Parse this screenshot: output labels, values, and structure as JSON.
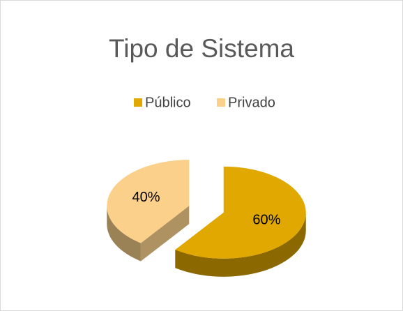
{
  "chart_data": {
    "type": "pie",
    "title": "Tipo de Sistema",
    "categories": [
      "Público",
      "Privado"
    ],
    "values": [
      60,
      40
    ],
    "value_labels": [
      "60%",
      "40%"
    ],
    "colors": [
      "#e0a800",
      "#fad08a"
    ],
    "legend": "top"
  }
}
